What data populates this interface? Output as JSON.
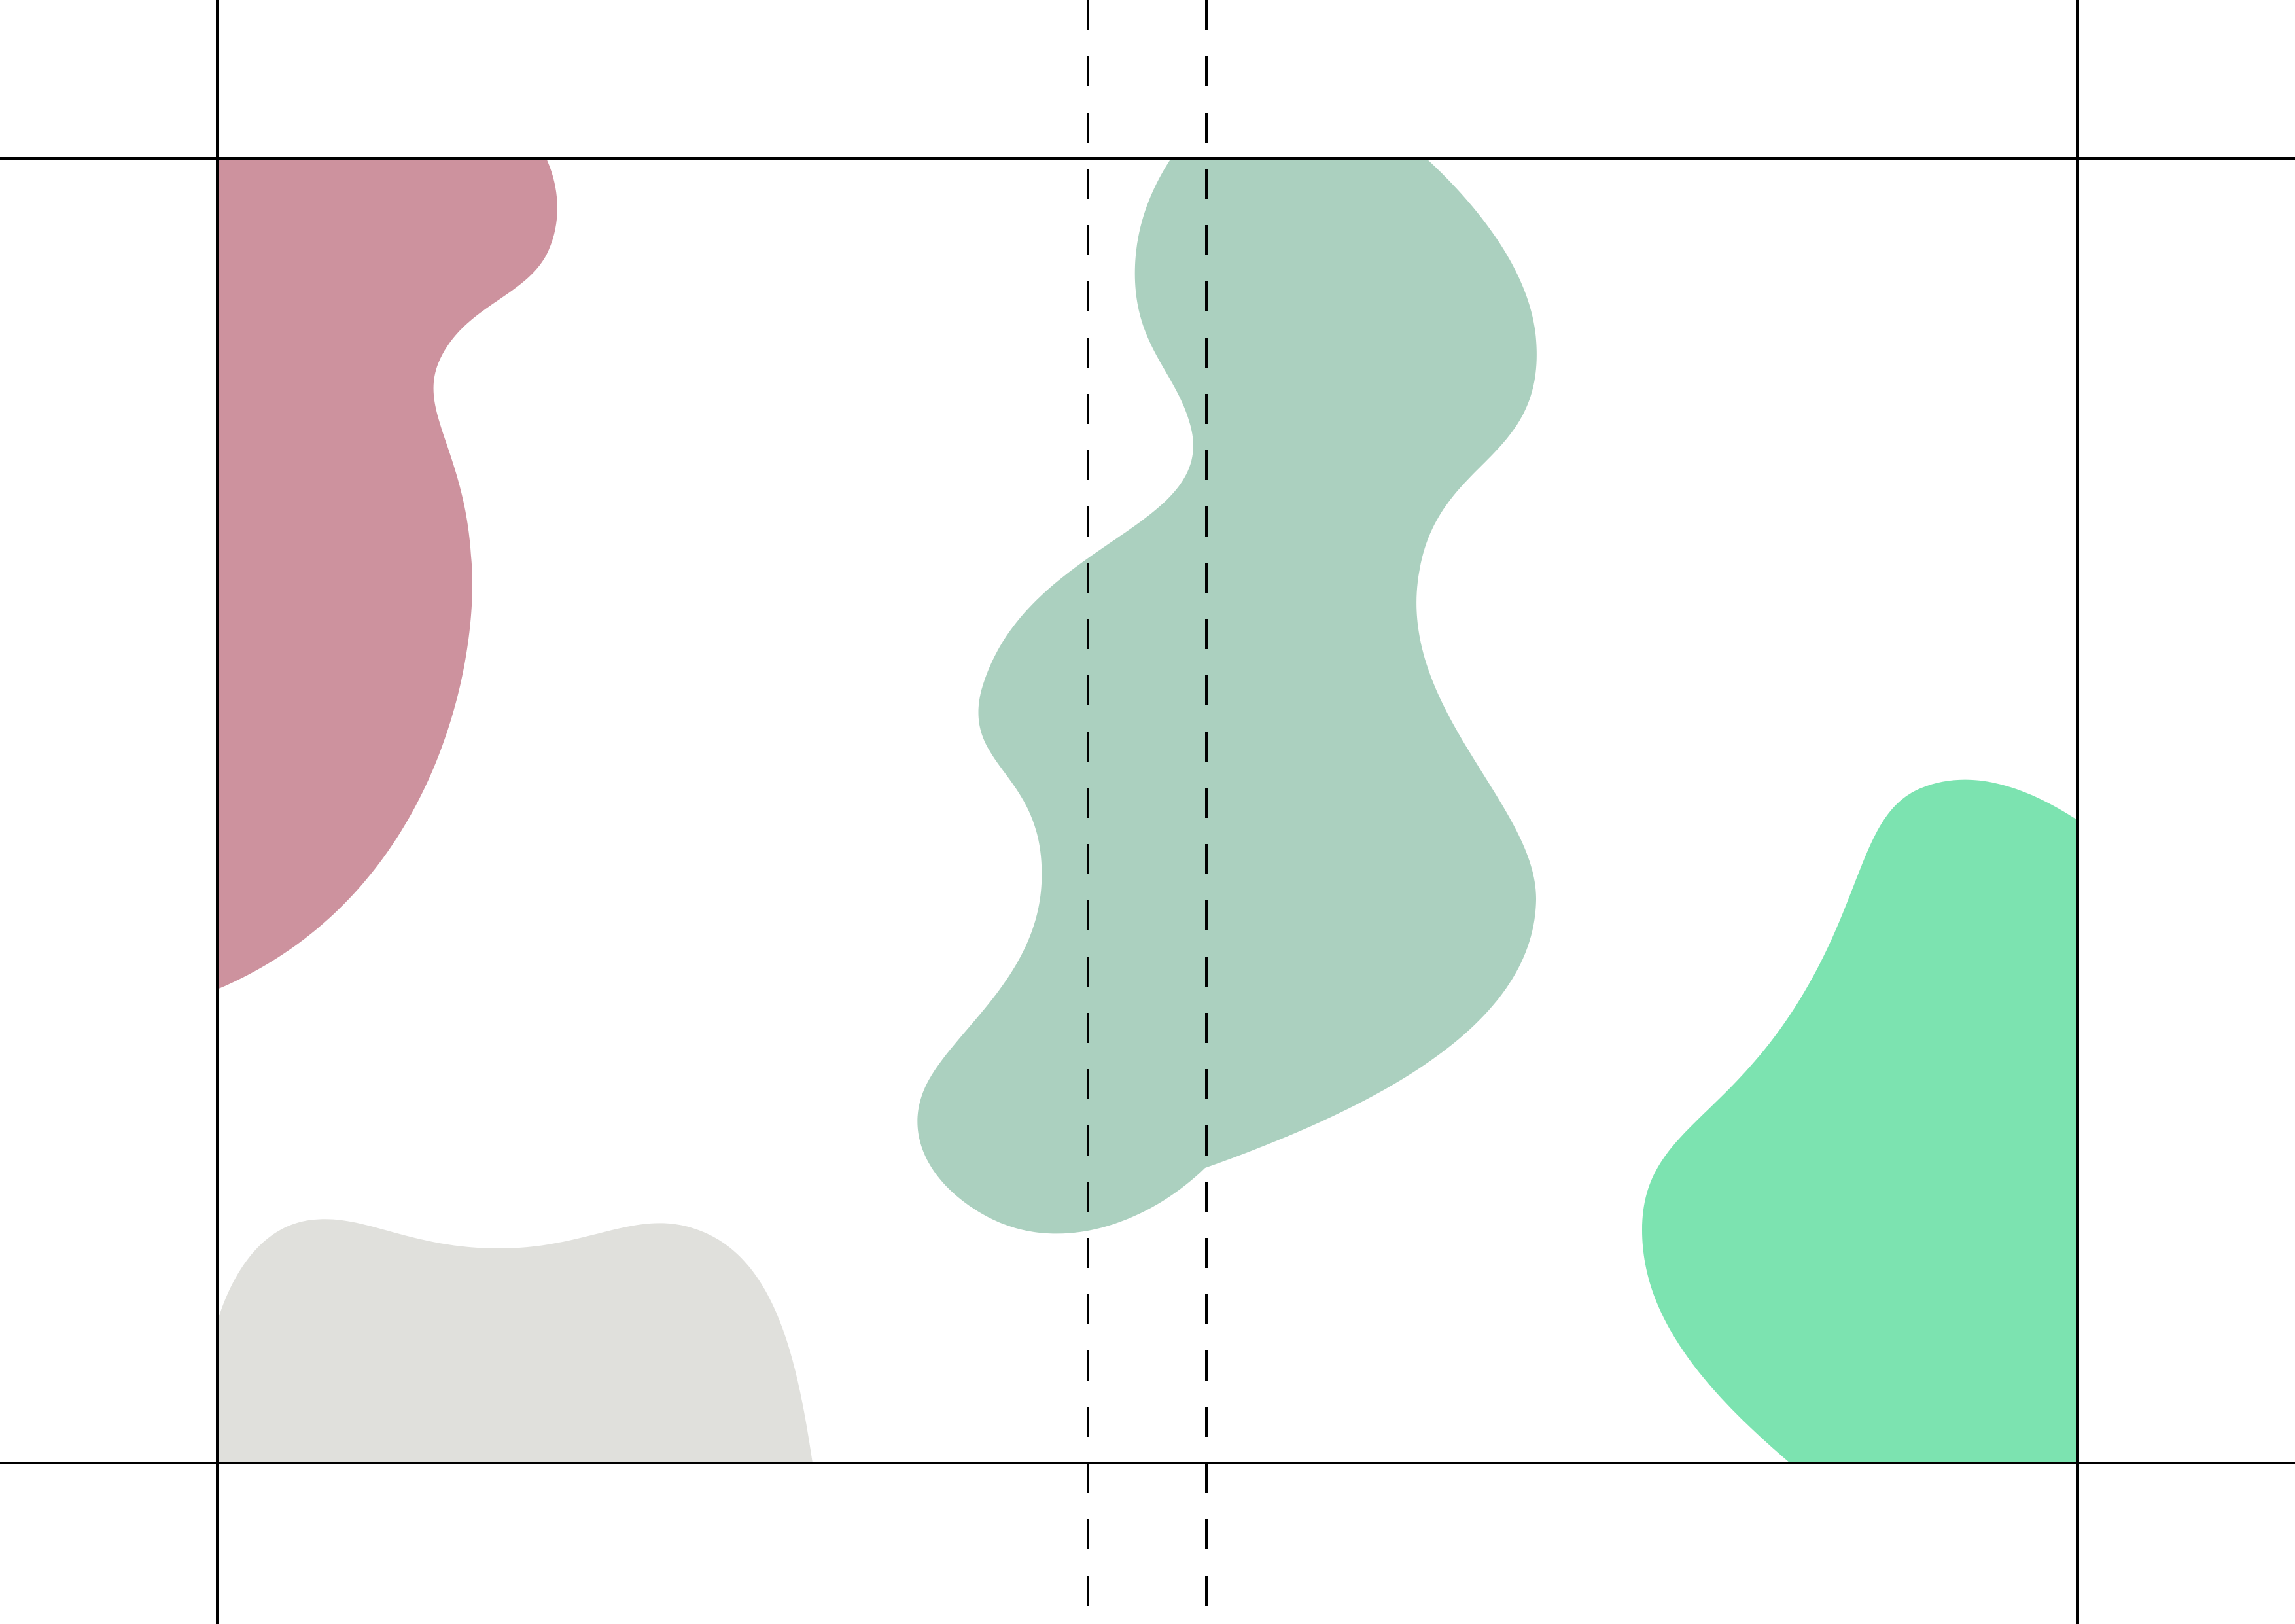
{
  "colors": {
    "background": "#ffffff",
    "guide_line": "#000000",
    "blob_rose": "#cd929e",
    "blob_sage": "#abd0bf",
    "blob_gray": "#e0e0dc",
    "blob_mint": "#7ce3b0"
  },
  "shapes": {
    "guides": {
      "trim_lines": "solid",
      "fold_lines": "dashed"
    },
    "blobs": [
      {
        "name": "rose-blob",
        "color_key": "blob_rose"
      },
      {
        "name": "sage-blob",
        "color_key": "blob_sage"
      },
      {
        "name": "gray-blob",
        "color_key": "blob_gray"
      },
      {
        "name": "mint-blob",
        "color_key": "blob_mint"
      }
    ]
  }
}
